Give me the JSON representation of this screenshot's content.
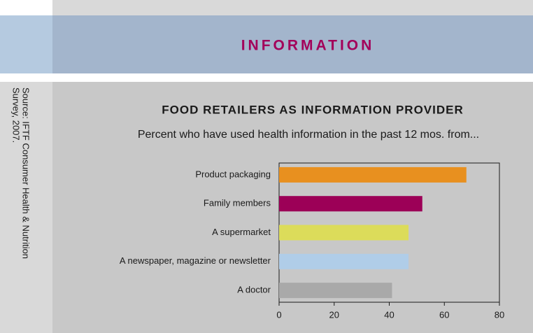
{
  "header": {
    "title": "INFORMATION"
  },
  "source": [
    "Source: IFTF Consumer Health & Nutrition",
    "Survey, 2007."
  ],
  "chart_data": {
    "type": "bar",
    "orientation": "horizontal",
    "title": "FOOD RETAILERS AS INFORMATION PROVIDER",
    "subtitle": "Percent who have used health information in the past 12 mos. from...",
    "categories": [
      "Product packaging",
      "Family members",
      "A supermarket",
      "A newspaper, magazine or newsletter",
      "A doctor"
    ],
    "values": [
      68,
      52,
      47,
      47,
      41
    ],
    "colors": [
      "#e8901f",
      "#9c0057",
      "#dcdc5a",
      "#b0cde8",
      "#a9a9a9"
    ],
    "xlim": [
      0,
      80
    ],
    "xticks": [
      0,
      20,
      40,
      60,
      80
    ]
  }
}
